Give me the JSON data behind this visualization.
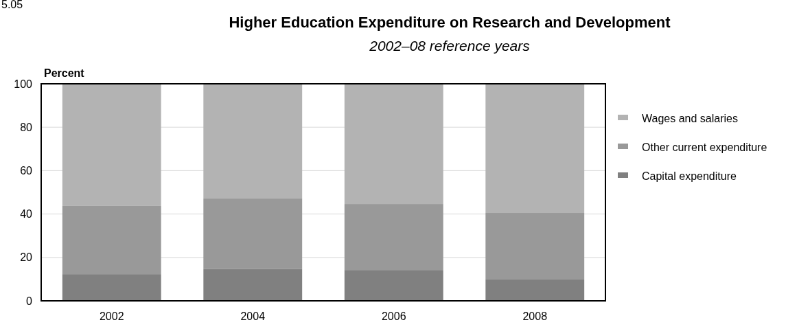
{
  "chart_data": {
    "type": "bar",
    "title": "Higher Education Expenditure on Research and Development",
    "subtitle": "2002–08 reference years",
    "ylabel": "Percent",
    "annotations": [
      "5.05"
    ],
    "categories": [
      "2002",
      "2004",
      "2006",
      "2008"
    ],
    "stacked": true,
    "series": [
      {
        "name": "Capital expenditure",
        "color": "#808080",
        "values": [
          12.3,
          14.6,
          14.2,
          9.8
        ]
      },
      {
        "name": "Other current expenditure",
        "color": "#999999",
        "values": [
          31.4,
          32.6,
          30.4,
          30.7
        ]
      },
      {
        "name": "Wages and salaries",
        "color": "#b3b3b3",
        "values": [
          56.3,
          52.8,
          55.4,
          59.5
        ]
      }
    ],
    "ylim": [
      0,
      100
    ],
    "yticks": [
      0,
      20,
      40,
      60,
      80,
      100
    ],
    "grid": "y",
    "legend": "right"
  }
}
